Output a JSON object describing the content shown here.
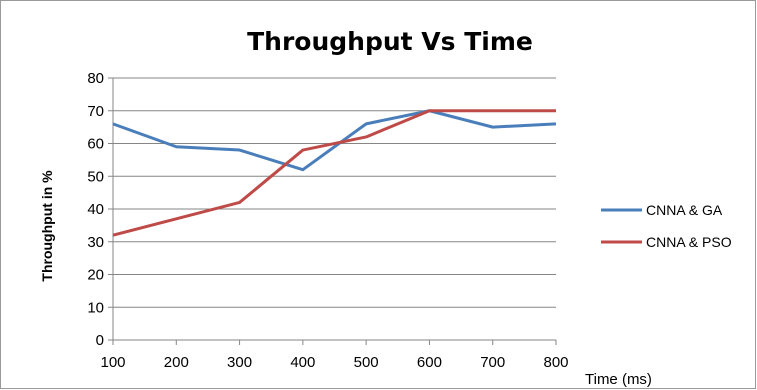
{
  "chart_data": {
    "type": "line",
    "title": "Throughput Vs Time",
    "xlabel": "Time  (ms)",
    "ylabel": "Throughput in %",
    "x": [
      100,
      200,
      300,
      400,
      500,
      600,
      700,
      800
    ],
    "xlim": [
      100,
      800
    ],
    "ylim": [
      0,
      80
    ],
    "yticks": [
      0,
      10,
      20,
      30,
      40,
      50,
      60,
      70,
      80
    ],
    "grid": "horizontal",
    "legend": "right",
    "series": [
      {
        "name": "CNNA & GA",
        "color": "#4a7ebb",
        "values": [
          66,
          59,
          58,
          52,
          66,
          70,
          65,
          66
        ]
      },
      {
        "name": "CNNA & PSO",
        "color": "#be4b48",
        "values": [
          32,
          37,
          42,
          58,
          62,
          70,
          70,
          70
        ]
      }
    ]
  }
}
